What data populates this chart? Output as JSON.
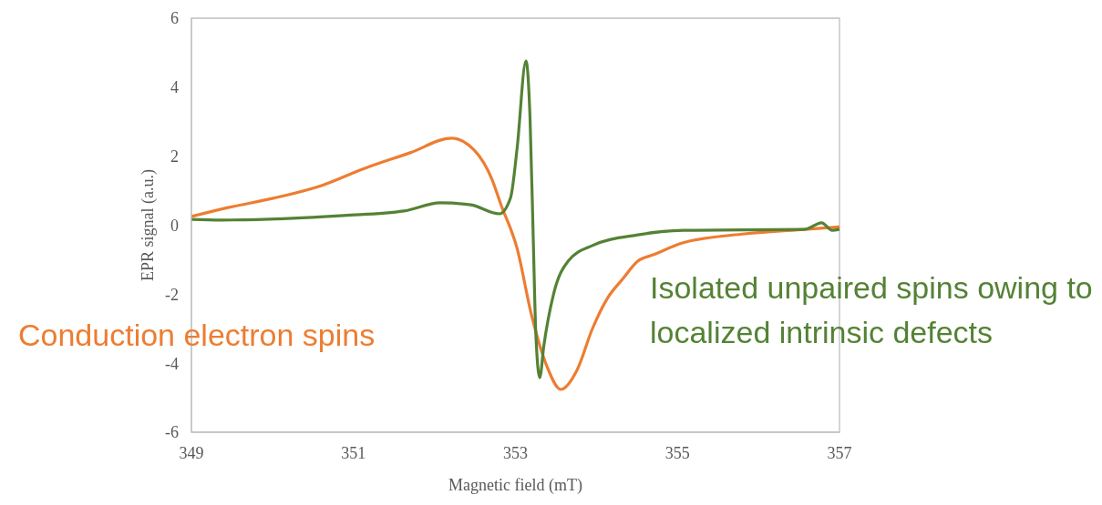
{
  "chart_data": {
    "type": "line",
    "xlabel": "Magnetic field (mT)",
    "ylabel": "EPR signal (a.u.)",
    "xlim": [
      349,
      357
    ],
    "xticks": [
      349,
      351,
      353,
      355,
      357
    ],
    "ylim": [
      -6,
      6
    ],
    "yticks": [
      -6,
      -4,
      -2,
      0,
      2,
      4,
      6
    ],
    "grid": false,
    "legend": false,
    "marker": "none",
    "line_style": "solid",
    "series": [
      {
        "name": "Conduction electron spins",
        "color": "#ed7d31",
        "x": [
          349,
          349.45,
          350.01,
          350.57,
          351.14,
          351.7,
          352.21,
          352.49,
          352.71,
          352.82,
          353.02,
          353.2,
          353.39,
          353.56,
          353.76,
          353.95,
          354.14,
          354.32,
          354.51,
          354.7,
          355.07,
          355.83,
          356.57,
          357
        ],
        "values": [
          0.25,
          0.51,
          0.78,
          1.12,
          1.65,
          2.1,
          2.52,
          2.18,
          1.33,
          0.6,
          -0.67,
          -2.62,
          -4.1,
          -4.76,
          -4.2,
          -3.0,
          -2.1,
          -1.57,
          -1.04,
          -0.86,
          -0.51,
          -0.25,
          -0.12,
          -0.05
        ]
      },
      {
        "name": "Isolated unpaired spins owing to localized intrinsic defects",
        "color": "#548235",
        "x": [
          349,
          349.37,
          350.88,
          351.62,
          352.07,
          352.45,
          352.8,
          352.94,
          353.02,
          353.13,
          353.18,
          353.22,
          353.25,
          353.3,
          353.35,
          353.47,
          353.65,
          353.95,
          354.51,
          355.07,
          356.57,
          356.78,
          356.91,
          357
        ],
        "values": [
          0.17,
          0.15,
          0.28,
          0.41,
          0.65,
          0.59,
          0.33,
          0.8,
          2.22,
          4.76,
          3.1,
          -0.41,
          -3.05,
          -4.42,
          -3.5,
          -2.0,
          -1.04,
          -0.59,
          -0.28,
          -0.15,
          -0.12,
          0.07,
          -0.15,
          -0.12
        ]
      }
    ]
  }
}
